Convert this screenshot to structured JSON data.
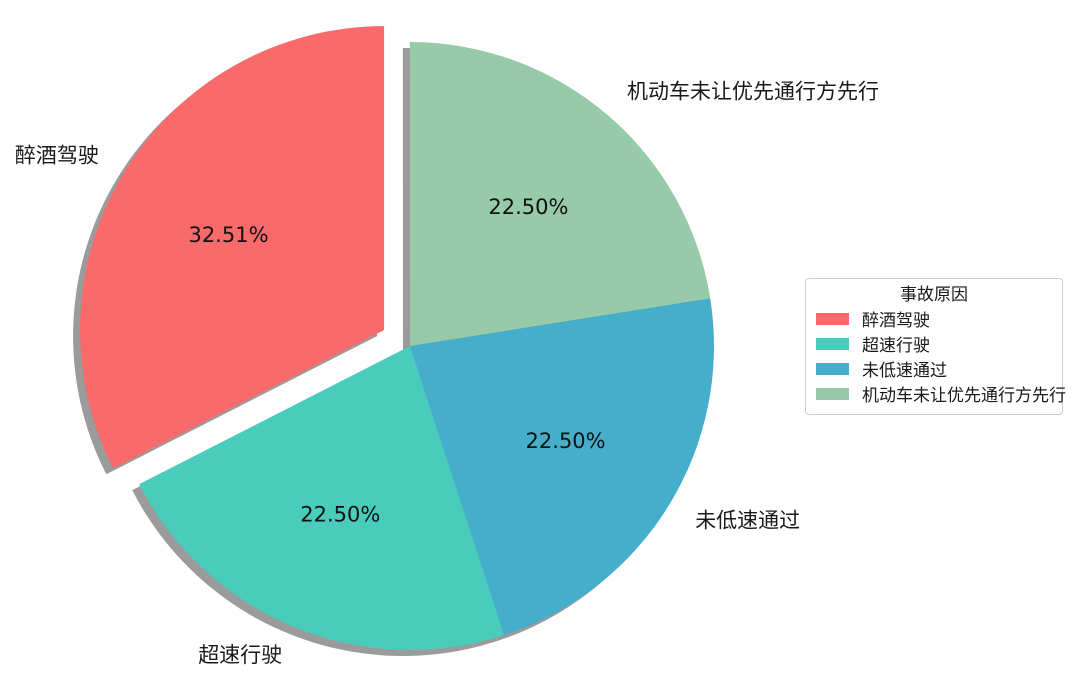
{
  "chart_data": {
    "type": "pie",
    "title": "",
    "start_angle_deg": 90,
    "direction": "counterclockwise",
    "autopct_format": "%.2f%%",
    "shadow": true,
    "legend": {
      "title": "事故原因",
      "position": "right"
    },
    "slices": [
      {
        "label": "醉酒驾驶",
        "value": 32.51,
        "pct_label": "32.51%",
        "color": "#FA6A6A",
        "explode": 0.1
      },
      {
        "label": "超速行驶",
        "value": 22.5,
        "pct_label": "22.50%",
        "color": "#49CCBC",
        "explode": 0
      },
      {
        "label": "未低速通过",
        "value": 22.5,
        "pct_label": "22.50%",
        "color": "#45AECB",
        "explode": 0
      },
      {
        "label": "机动车未让优先通行方先行",
        "value": 22.5,
        "pct_label": "22.50%",
        "color": "#96CAA9",
        "explode": 0
      }
    ],
    "colors": {
      "shadow": "#9B9B9B",
      "label_text": "#1a1a1a",
      "pct_text": "#111111",
      "background": "#ffffff",
      "legend_border": "#cccccc"
    }
  }
}
